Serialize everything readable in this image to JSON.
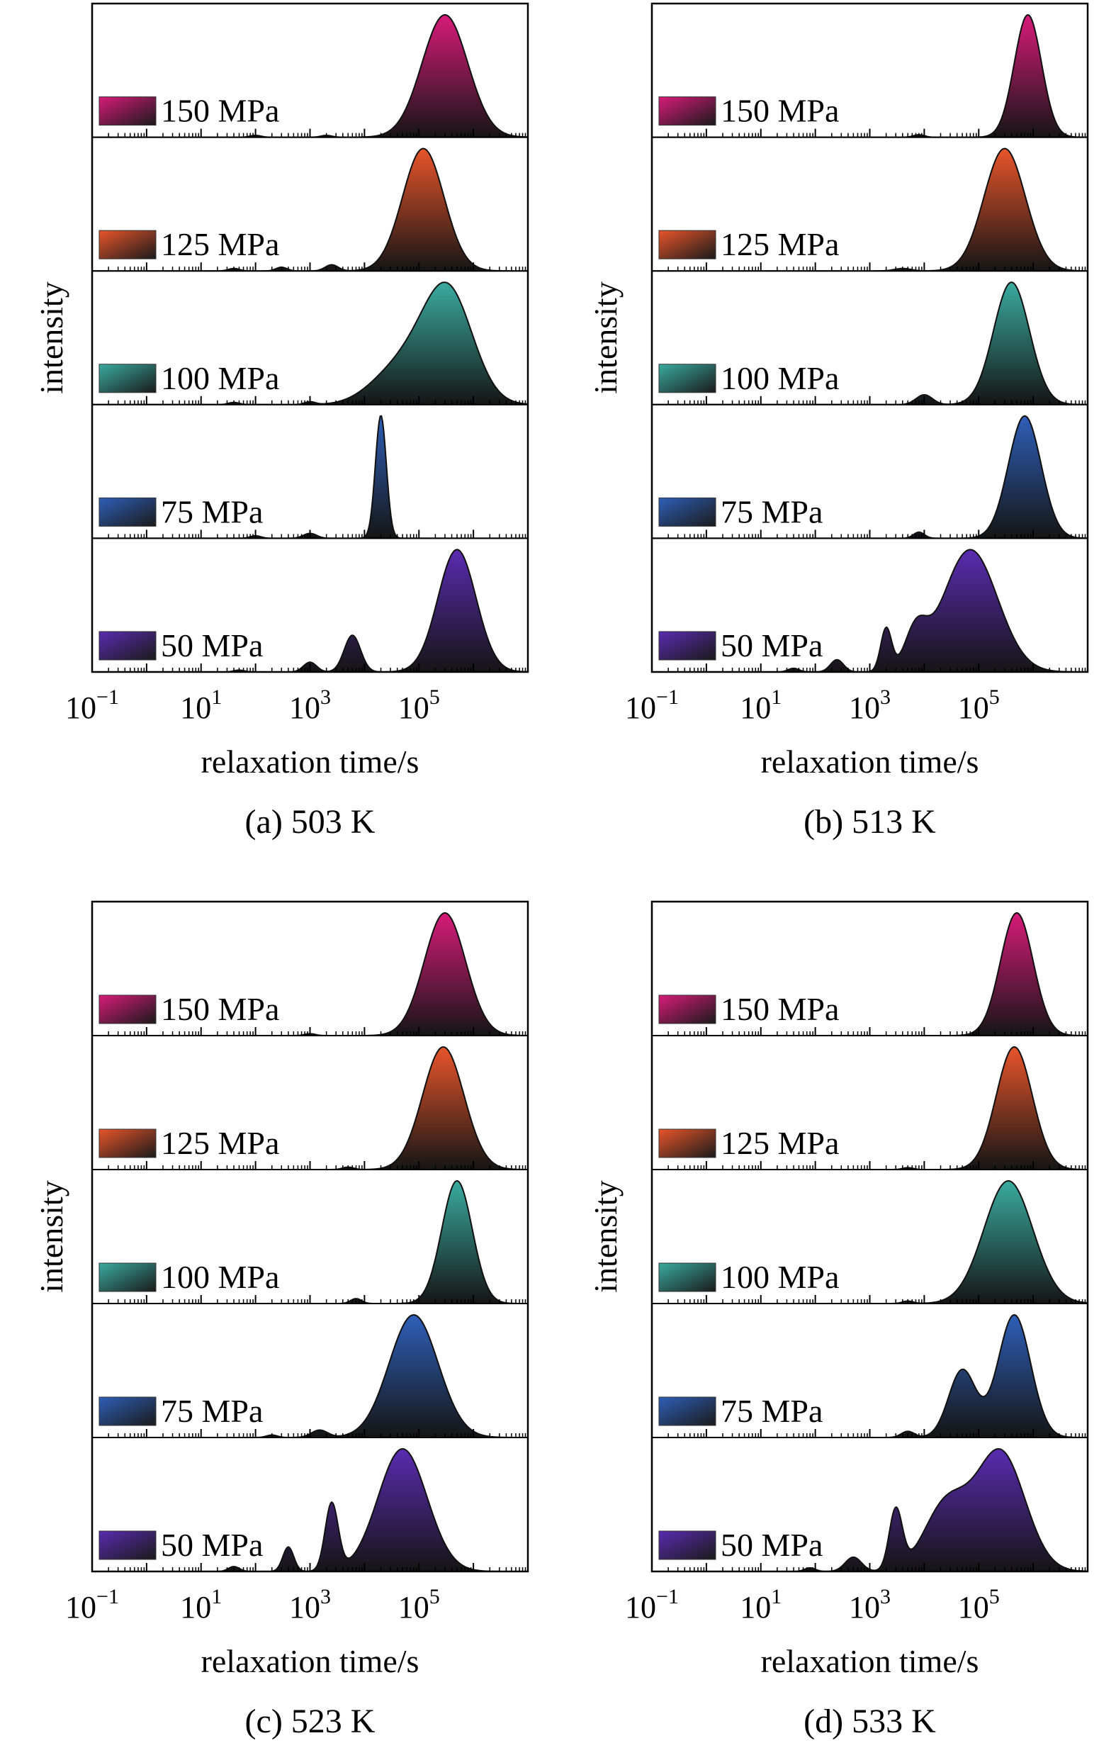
{
  "figure": {
    "ylabel": "intensity",
    "xlabel": "relaxation time/s"
  },
  "chart_data": [
    {
      "type": "area",
      "caption": "(a) 503 K",
      "xlabel": "relaxation time/s",
      "ylabel": "intensity",
      "x_scale": "log",
      "xlim": [
        0.1,
        10000000
      ],
      "x_ticks": [
        {
          "value": 0.1,
          "base": "10",
          "exp": "−1"
        },
        {
          "value": 10,
          "base": "10",
          "exp": "1"
        },
        {
          "value": 1000,
          "base": "10",
          "exp": "3"
        },
        {
          "value": 100000,
          "base": "10",
          "exp": "5"
        }
      ],
      "legend_placement": "left",
      "series": [
        {
          "name": "150 MPa",
          "color": "#d81b7a",
          "peaks": [
            {
              "x": 300000,
              "height": 1.0,
              "width": 0.42
            },
            {
              "x": 100,
              "height": 0.015,
              "width": 0.1
            },
            {
              "x": 2000,
              "height": 0.015,
              "width": 0.1
            }
          ]
        },
        {
          "name": "125 MPa",
          "color": "#e8552b",
          "peaks": [
            {
              "x": 120000,
              "height": 1.0,
              "width": 0.38
            },
            {
              "x": 40,
              "height": 0.02,
              "width": 0.1
            },
            {
              "x": 300,
              "height": 0.03,
              "width": 0.1
            },
            {
              "x": 2500,
              "height": 0.05,
              "width": 0.12
            }
          ]
        },
        {
          "name": "100 MPa",
          "color": "#3aaba0",
          "peaks": [
            {
              "x": 350000,
              "height": 1.0,
              "width": 0.45
            },
            {
              "x": 60000,
              "height": 0.35,
              "width": 0.5
            },
            {
              "x": 15000,
              "height": 0.05,
              "width": 0.4
            },
            {
              "x": 40,
              "height": 0.02,
              "width": 0.1
            },
            {
              "x": 1000,
              "height": 0.025,
              "width": 0.1
            }
          ]
        },
        {
          "name": "75 MPa",
          "color": "#2e5fb8",
          "peaks": [
            {
              "x": 20000,
              "height": 1.0,
              "width": 0.1
            },
            {
              "x": 100,
              "height": 0.02,
              "width": 0.1
            },
            {
              "x": 1000,
              "height": 0.04,
              "width": 0.12
            }
          ]
        },
        {
          "name": "50 MPa",
          "color": "#5a2bb0",
          "peaks": [
            {
              "x": 500000,
              "height": 1.0,
              "width": 0.35
            },
            {
              "x": 6000,
              "height": 0.3,
              "width": 0.15
            },
            {
              "x": 1000,
              "height": 0.08,
              "width": 0.12
            },
            {
              "x": 50,
              "height": 0.015,
              "width": 0.1
            }
          ]
        }
      ]
    },
    {
      "type": "area",
      "caption": "(b) 513 K",
      "xlabel": "relaxation time/s",
      "ylabel": "intensity",
      "x_scale": "log",
      "xlim": [
        0.1,
        10000000
      ],
      "x_ticks": [
        {
          "value": 0.1,
          "base": "10",
          "exp": "−1"
        },
        {
          "value": 10,
          "base": "10",
          "exp": "1"
        },
        {
          "value": 1000,
          "base": "10",
          "exp": "3"
        },
        {
          "value": 100000,
          "base": "10",
          "exp": "5"
        }
      ],
      "legend_placement": "left",
      "series": [
        {
          "name": "150 MPa",
          "color": "#d81b7a",
          "peaks": [
            {
              "x": 800000,
              "height": 1.0,
              "width": 0.25
            },
            {
              "x": 8000,
              "height": 0.02,
              "width": 0.1
            }
          ]
        },
        {
          "name": "125 MPa",
          "color": "#e8552b",
          "peaks": [
            {
              "x": 300000,
              "height": 1.0,
              "width": 0.38
            },
            {
              "x": 4000,
              "height": 0.02,
              "width": 0.15
            }
          ]
        },
        {
          "name": "100 MPa",
          "color": "#3aaba0",
          "peaks": [
            {
              "x": 400000,
              "height": 1.0,
              "width": 0.33
            },
            {
              "x": 10000,
              "height": 0.08,
              "width": 0.15
            }
          ]
        },
        {
          "name": "75 MPa",
          "color": "#2e5fb8",
          "peaks": [
            {
              "x": 700000,
              "height": 1.0,
              "width": 0.3
            },
            {
              "x": 8000,
              "height": 0.05,
              "width": 0.1
            }
          ]
        },
        {
          "name": "50 MPa",
          "color": "#5a2bb0",
          "peaks": [
            {
              "x": 70000,
              "height": 1.0,
              "width": 0.5
            },
            {
              "x": 7000,
              "height": 0.3,
              "width": 0.2
            },
            {
              "x": 2000,
              "height": 0.35,
              "width": 0.1
            },
            {
              "x": 250,
              "height": 0.1,
              "width": 0.12
            },
            {
              "x": 40,
              "height": 0.03,
              "width": 0.1
            }
          ]
        }
      ]
    },
    {
      "type": "area",
      "caption": "(c) 523 K",
      "xlabel": "relaxation time/s",
      "ylabel": "intensity",
      "x_scale": "log",
      "xlim": [
        0.1,
        10000000
      ],
      "x_ticks": [
        {
          "value": 0.1,
          "base": "10",
          "exp": "−1"
        },
        {
          "value": 10,
          "base": "10",
          "exp": "1"
        },
        {
          "value": 1000,
          "base": "10",
          "exp": "3"
        },
        {
          "value": 100000,
          "base": "10",
          "exp": "5"
        }
      ],
      "legend_placement": "left",
      "series": [
        {
          "name": "150 MPa",
          "color": "#d81b7a",
          "peaks": [
            {
              "x": 300000,
              "height": 1.0,
              "width": 0.38
            },
            {
              "x": 1000,
              "height": 0.015,
              "width": 0.1
            }
          ]
        },
        {
          "name": "125 MPa",
          "color": "#e8552b",
          "peaks": [
            {
              "x": 280000,
              "height": 1.0,
              "width": 0.38
            },
            {
              "x": 5000,
              "height": 0.02,
              "width": 0.1
            }
          ]
        },
        {
          "name": "100 MPa",
          "color": "#3aaba0",
          "peaks": [
            {
              "x": 500000,
              "height": 1.0,
              "width": 0.28
            },
            {
              "x": 7000,
              "height": 0.04,
              "width": 0.1
            }
          ]
        },
        {
          "name": "75 MPa",
          "color": "#2e5fb8",
          "peaks": [
            {
              "x": 80000,
              "height": 1.0,
              "width": 0.45
            },
            {
              "x": 1500,
              "height": 0.06,
              "width": 0.15
            },
            {
              "x": 200,
              "height": 0.02,
              "width": 0.1
            }
          ]
        },
        {
          "name": "50 MPa",
          "color": "#5a2bb0",
          "peaks": [
            {
              "x": 50000,
              "height": 1.0,
              "width": 0.45
            },
            {
              "x": 2500,
              "height": 0.55,
              "width": 0.12
            },
            {
              "x": 400,
              "height": 0.2,
              "width": 0.1
            },
            {
              "x": 40,
              "height": 0.04,
              "width": 0.1
            }
          ]
        }
      ]
    },
    {
      "type": "area",
      "caption": "(d) 533 K",
      "xlabel": "relaxation time/s",
      "ylabel": "intensity",
      "x_scale": "log",
      "xlim": [
        0.1,
        10000000
      ],
      "x_ticks": [
        {
          "value": 0.1,
          "base": "10",
          "exp": "−1"
        },
        {
          "value": 10,
          "base": "10",
          "exp": "1"
        },
        {
          "value": 1000,
          "base": "10",
          "exp": "3"
        },
        {
          "value": 100000,
          "base": "10",
          "exp": "5"
        }
      ],
      "legend_placement": "left",
      "series": [
        {
          "name": "150 MPa",
          "color": "#d81b7a",
          "peaks": [
            {
              "x": 500000,
              "height": 1.0,
              "width": 0.3
            }
          ]
        },
        {
          "name": "125 MPa",
          "color": "#e8552b",
          "peaks": [
            {
              "x": 450000,
              "height": 1.0,
              "width": 0.33
            },
            {
              "x": 5000,
              "height": 0.015,
              "width": 0.1
            }
          ]
        },
        {
          "name": "100 MPa",
          "color": "#3aaba0",
          "peaks": [
            {
              "x": 350000,
              "height": 1.0,
              "width": 0.45
            },
            {
              "x": 5000,
              "height": 0.02,
              "width": 0.1
            }
          ]
        },
        {
          "name": "75 MPa",
          "color": "#2e5fb8",
          "peaks": [
            {
              "x": 450000,
              "height": 1.0,
              "width": 0.3
            },
            {
              "x": 50000,
              "height": 0.55,
              "width": 0.25
            },
            {
              "x": 5000,
              "height": 0.05,
              "width": 0.12
            }
          ]
        },
        {
          "name": "50 MPa",
          "color": "#5a2bb0",
          "peaks": [
            {
              "x": 250000,
              "height": 1.0,
              "width": 0.45
            },
            {
              "x": 25000,
              "height": 0.55,
              "width": 0.4
            },
            {
              "x": 3000,
              "height": 0.5,
              "width": 0.12
            },
            {
              "x": 500,
              "height": 0.12,
              "width": 0.15
            },
            {
              "x": 80,
              "height": 0.03,
              "width": 0.1
            }
          ]
        }
      ]
    }
  ]
}
